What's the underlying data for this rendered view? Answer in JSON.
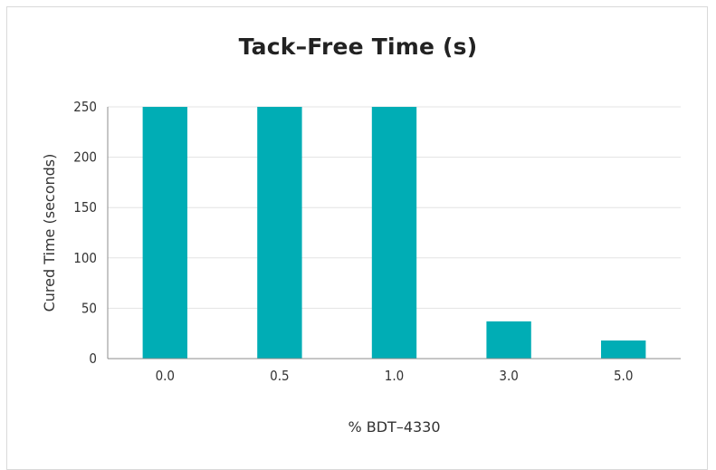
{
  "chart_data": {
    "type": "bar",
    "title": "Tack–Free Time (s)",
    "xlabel": "% BDT–4330",
    "ylabel": "Cured Time (seconds)",
    "categories": [
      "0.0",
      "0.5",
      "1.0",
      "3.0",
      "5.0"
    ],
    "values": [
      250,
      250,
      250,
      37,
      18
    ],
    "ylim": [
      0,
      250
    ],
    "yticks": [
      0,
      50,
      100,
      150,
      200,
      250
    ],
    "grid": true,
    "legend": "none",
    "bar_color": "#00adb5",
    "grid_color": "#e3e3e3",
    "axis_color": "#8c8c8c"
  }
}
